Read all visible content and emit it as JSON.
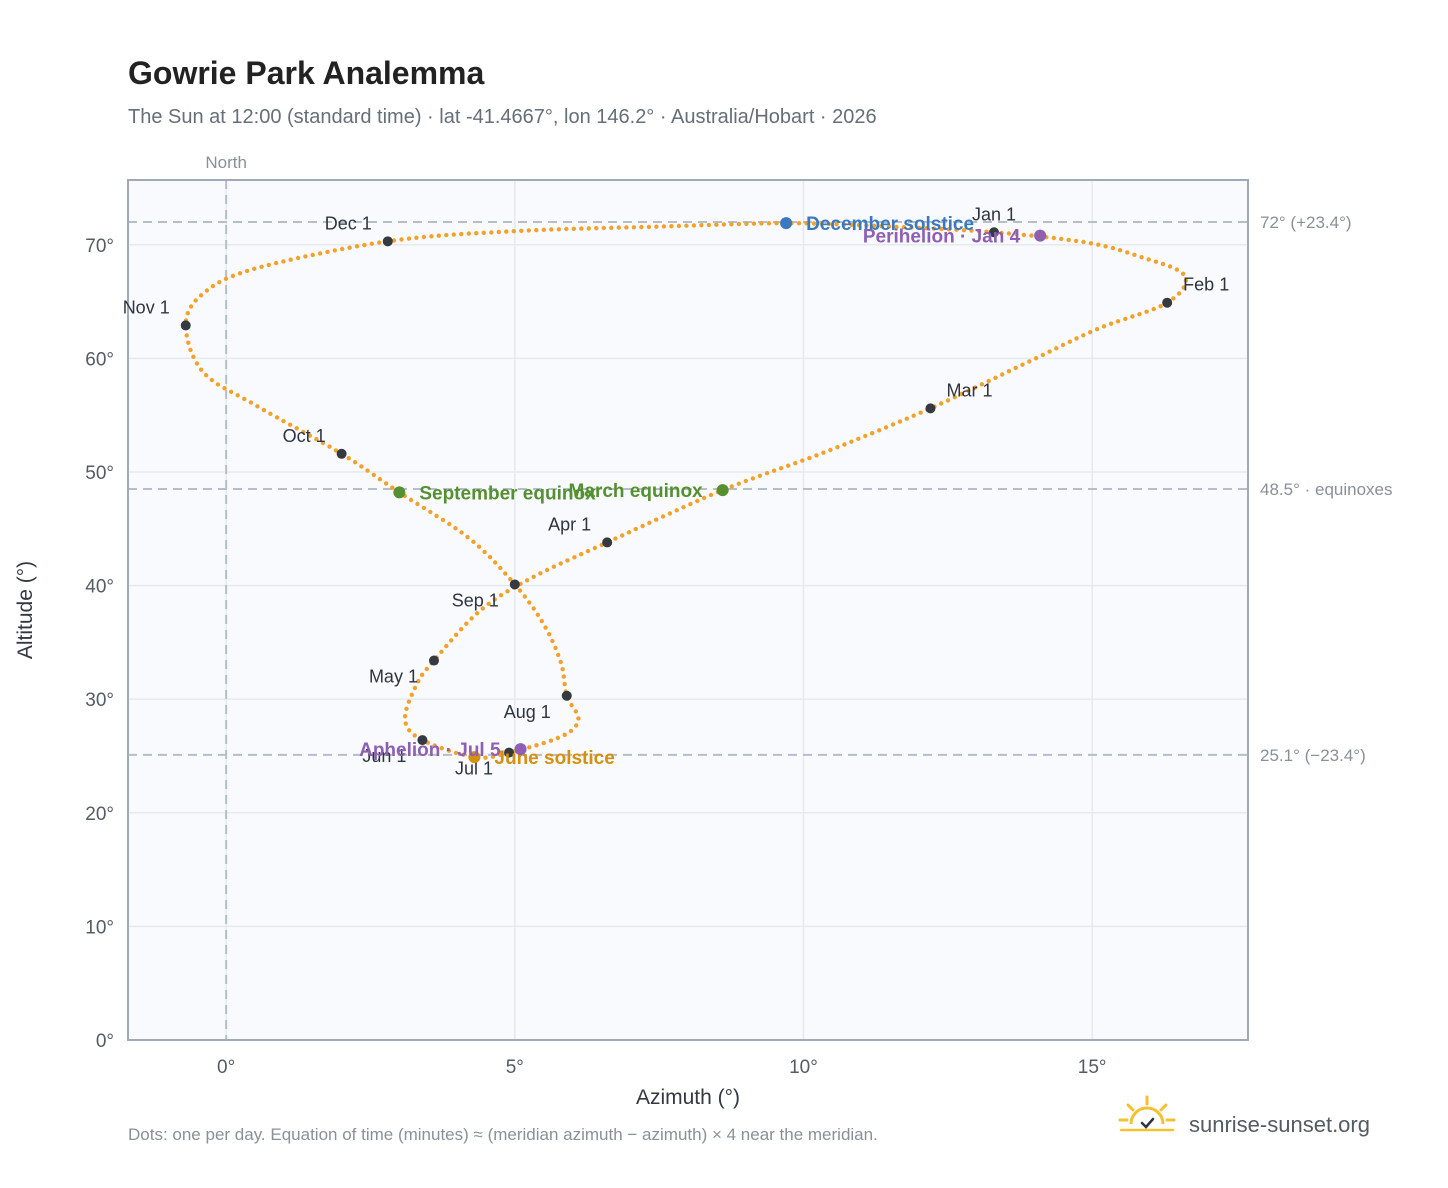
{
  "header": {
    "title": "Gowrie Park Analemma",
    "subtitle": "The Sun at 12:00 (standard time) · lat -41.4667°, lon 146.2° · Australia/Hobart · 2026"
  },
  "footer": {
    "note": "Dots: one per day. Equation of time (minutes) ≈ (meridian azimuth − azimuth) × 4 near the meridian.",
    "brand": "sunrise-sunset.org"
  },
  "colors": {
    "curve": "#f2a22c",
    "month_dot": "#343a40",
    "december_solstice": "#3a78c0",
    "june_solstice": "#d4900e",
    "equinox": "#559030",
    "apsis": "#8e5fb3",
    "grid": "#e6e9ee",
    "plot_bg": "#f8fafd",
    "frame": "#a0a9b8",
    "ref_line": "#b4bfcb"
  },
  "chart_data": {
    "type": "scatter",
    "title": "Gowrie Park Analemma",
    "xlabel": "Azimuth (°)",
    "ylabel": "Altitude (°)",
    "xlim": [
      -1.7,
      17.7
    ],
    "ylim": [
      0,
      75.7
    ],
    "x_ticks": [
      0,
      5,
      10,
      15
    ],
    "x_tick_labels": [
      "0°",
      "5°",
      "10°",
      "15°"
    ],
    "y_ticks": [
      0,
      10,
      20,
      30,
      40,
      50,
      60,
      70
    ],
    "y_tick_labels": [
      "0°",
      "10°",
      "20°",
      "30°",
      "40°",
      "50°",
      "60°",
      "70°"
    ],
    "grid": true,
    "vertical_reference": {
      "x": 0,
      "label": "North"
    },
    "horizontal_references": [
      {
        "y": 72.0,
        "label": "72° (+23.4°)"
      },
      {
        "y": 48.5,
        "label": "48.5° · equinoxes"
      },
      {
        "y": 25.1,
        "label": "25.1° (−23.4°)"
      }
    ],
    "month_points": [
      {
        "label": "Jan 1",
        "x": 13.3,
        "y": 71.1,
        "label_pos": "above"
      },
      {
        "label": "Feb 1",
        "x": 16.3,
        "y": 64.9,
        "label_pos": "above-right"
      },
      {
        "label": "Mar 1",
        "x": 12.2,
        "y": 55.6,
        "label_pos": "above-right"
      },
      {
        "label": "Apr 1",
        "x": 6.6,
        "y": 43.8,
        "label_pos": "above-left"
      },
      {
        "label": "May 1",
        "x": 3.6,
        "y": 33.4,
        "label_pos": "below-left"
      },
      {
        "label": "Jun 1",
        "x": 3.4,
        "y": 26.4,
        "label_pos": "below-left"
      },
      {
        "label": "Jul 1",
        "x": 4.9,
        "y": 25.3,
        "label_pos": "below-left"
      },
      {
        "label": "Aug 1",
        "x": 5.9,
        "y": 30.3,
        "label_pos": "below-left"
      },
      {
        "label": "Sep 1",
        "x": 5.0,
        "y": 40.1,
        "label_pos": "below-left"
      },
      {
        "label": "Oct 1",
        "x": 2.0,
        "y": 51.6,
        "label_pos": "above-left"
      },
      {
        "label": "Nov 1",
        "x": -0.7,
        "y": 62.9,
        "label_pos": "above-left"
      },
      {
        "label": "Dec 1",
        "x": 2.8,
        "y": 70.3,
        "label_pos": "above-left"
      }
    ],
    "events": [
      {
        "label": "December solstice",
        "x": 9.7,
        "y": 71.9,
        "color_key": "december_solstice",
        "label_pos": "right"
      },
      {
        "label": "Perihelion · Jan 4",
        "x": 14.1,
        "y": 70.8,
        "color_key": "apsis",
        "label_pos": "left"
      },
      {
        "label": "March equinox",
        "x": 8.6,
        "y": 48.4,
        "color_key": "equinox",
        "label_pos": "left"
      },
      {
        "label": "September equinox",
        "x": 3.0,
        "y": 48.2,
        "color_key": "equinox",
        "label_pos": "right"
      },
      {
        "label": "June solstice",
        "x": 4.3,
        "y": 24.9,
        "color_key": "june_solstice",
        "label_pos": "right"
      },
      {
        "label": "Aphelion · Jul 5",
        "x": 5.1,
        "y": 25.6,
        "color_key": "apsis",
        "label_pos": "left"
      }
    ],
    "curve_control_points": [
      [
        13.3,
        71.1
      ],
      [
        14.9,
        70.2
      ],
      [
        15.8,
        69.0
      ],
      [
        16.6,
        67.3
      ],
      [
        16.3,
        64.9
      ],
      [
        15.1,
        62.6
      ],
      [
        13.9,
        59.7
      ],
      [
        12.2,
        55.6
      ],
      [
        10.4,
        51.8
      ],
      [
        8.6,
        48.4
      ],
      [
        6.6,
        43.8
      ],
      [
        5.3,
        40.7
      ],
      [
        4.4,
        37.8
      ],
      [
        3.6,
        33.4
      ],
      [
        3.3,
        31.3
      ],
      [
        3.1,
        28.2
      ],
      [
        3.4,
        26.4
      ],
      [
        4.3,
        24.9
      ],
      [
        4.9,
        25.3
      ],
      [
        5.8,
        26.7
      ],
      [
        6.1,
        28.2
      ],
      [
        5.9,
        30.3
      ],
      [
        5.8,
        33.2
      ],
      [
        5.5,
        36.6
      ],
      [
        5.0,
        40.1
      ],
      [
        4.2,
        44.2
      ],
      [
        3.0,
        48.2
      ],
      [
        2.0,
        51.6
      ],
      [
        0.5,
        55.9
      ],
      [
        -0.4,
        58.8
      ],
      [
        -0.7,
        62.9
      ],
      [
        -0.4,
        65.7
      ],
      [
        0.5,
        67.9
      ],
      [
        2.8,
        70.3
      ],
      [
        5.0,
        71.2
      ],
      [
        7.5,
        71.6
      ],
      [
        9.7,
        71.9
      ],
      [
        11.5,
        71.6
      ],
      [
        13.3,
        71.1
      ]
    ]
  }
}
